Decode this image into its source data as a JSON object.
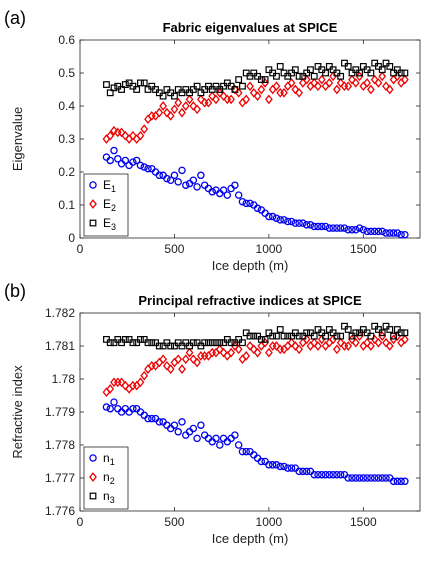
{
  "chart_data": [
    {
      "type": "scatter",
      "panel_label": "(a)",
      "title": "Fabric eigenvalues at SPICE",
      "xlabel": "Ice depth (m)",
      "ylabel": "Eigenvalue",
      "xlim": [
        0,
        1800
      ],
      "ylim": [
        0,
        0.6
      ],
      "xticks": [
        "0",
        "500",
        "1000",
        "1500"
      ],
      "yticks": [
        "0",
        "0.1",
        "0.2",
        "0.3",
        "0.4",
        "0.5",
        "0.6"
      ],
      "legend_position": "lower-left",
      "series": [
        {
          "name": "E",
          "sub": "1",
          "marker": "circle",
          "color": "#0000ee",
          "x": [
            140,
            160,
            180,
            200,
            220,
            240,
            260,
            280,
            300,
            320,
            340,
            360,
            380,
            400,
            420,
            440,
            460,
            480,
            500,
            520,
            540,
            560,
            580,
            600,
            620,
            640,
            660,
            680,
            700,
            720,
            740,
            760,
            780,
            800,
            820,
            840,
            860,
            880,
            900,
            920,
            940,
            960,
            980,
            1000,
            1020,
            1040,
            1060,
            1080,
            1100,
            1120,
            1140,
            1160,
            1180,
            1200,
            1220,
            1240,
            1260,
            1280,
            1300,
            1320,
            1340,
            1360,
            1380,
            1400,
            1420,
            1440,
            1460,
            1480,
            1500,
            1520,
            1540,
            1560,
            1580,
            1600,
            1620,
            1640,
            1660,
            1680,
            1700,
            1720
          ],
          "y": [
            0.245,
            0.235,
            0.265,
            0.24,
            0.225,
            0.235,
            0.22,
            0.23,
            0.235,
            0.22,
            0.215,
            0.21,
            0.21,
            0.2,
            0.19,
            0.19,
            0.18,
            0.175,
            0.19,
            0.17,
            0.205,
            0.16,
            0.165,
            0.175,
            0.155,
            0.19,
            0.16,
            0.15,
            0.14,
            0.145,
            0.135,
            0.145,
            0.13,
            0.15,
            0.16,
            0.13,
            0.11,
            0.105,
            0.105,
            0.1,
            0.09,
            0.085,
            0.075,
            0.065,
            0.065,
            0.06,
            0.055,
            0.055,
            0.05,
            0.05,
            0.045,
            0.045,
            0.045,
            0.04,
            0.04,
            0.035,
            0.035,
            0.035,
            0.035,
            0.03,
            0.03,
            0.03,
            0.03,
            0.03,
            0.025,
            0.025,
            0.025,
            0.03,
            0.025,
            0.02,
            0.02,
            0.02,
            0.02,
            0.02,
            0.015,
            0.015,
            0.015,
            0.015,
            0.01,
            0.01
          ]
        },
        {
          "name": "E",
          "sub": "2",
          "marker": "diamond",
          "color": "#ee0000",
          "x": [
            140,
            160,
            180,
            200,
            220,
            240,
            260,
            280,
            300,
            320,
            340,
            360,
            380,
            400,
            420,
            440,
            460,
            480,
            500,
            520,
            540,
            560,
            580,
            600,
            620,
            640,
            660,
            680,
            700,
            720,
            740,
            760,
            780,
            800,
            820,
            840,
            860,
            880,
            900,
            920,
            940,
            960,
            980,
            1000,
            1020,
            1040,
            1060,
            1080,
            1100,
            1120,
            1140,
            1160,
            1180,
            1200,
            1220,
            1240,
            1260,
            1280,
            1300,
            1320,
            1340,
            1360,
            1380,
            1400,
            1420,
            1440,
            1460,
            1480,
            1500,
            1520,
            1540,
            1560,
            1580,
            1600,
            1620,
            1640,
            1660,
            1680,
            1700,
            1720
          ],
          "y": [
            0.3,
            0.31,
            0.325,
            0.32,
            0.32,
            0.31,
            0.3,
            0.31,
            0.3,
            0.31,
            0.33,
            0.36,
            0.37,
            0.37,
            0.38,
            0.4,
            0.38,
            0.37,
            0.39,
            0.41,
            0.38,
            0.4,
            0.42,
            0.4,
            0.39,
            0.42,
            0.41,
            0.41,
            0.43,
            0.42,
            0.44,
            0.43,
            0.42,
            0.42,
            0.45,
            0.44,
            0.41,
            0.42,
            0.46,
            0.44,
            0.43,
            0.45,
            0.47,
            0.42,
            0.45,
            0.46,
            0.44,
            0.44,
            0.46,
            0.47,
            0.45,
            0.44,
            0.47,
            0.48,
            0.46,
            0.47,
            0.46,
            0.48,
            0.46,
            0.47,
            0.49,
            0.45,
            0.47,
            0.46,
            0.46,
            0.48,
            0.47,
            0.49,
            0.46,
            0.47,
            0.45,
            0.48,
            0.47,
            0.49,
            0.46,
            0.45,
            0.48,
            0.49,
            0.47,
            0.48
          ]
        },
        {
          "name": "E",
          "sub": "3",
          "marker": "square",
          "color": "#000000",
          "x": [
            140,
            160,
            180,
            200,
            220,
            240,
            260,
            280,
            300,
            320,
            340,
            360,
            380,
            400,
            420,
            440,
            460,
            480,
            500,
            520,
            540,
            560,
            580,
            600,
            620,
            640,
            660,
            680,
            700,
            720,
            740,
            760,
            780,
            800,
            820,
            840,
            860,
            880,
            900,
            920,
            940,
            960,
            980,
            1000,
            1020,
            1040,
            1060,
            1080,
            1100,
            1120,
            1140,
            1160,
            1180,
            1200,
            1220,
            1240,
            1260,
            1280,
            1300,
            1320,
            1340,
            1360,
            1380,
            1400,
            1420,
            1440,
            1460,
            1480,
            1500,
            1520,
            1540,
            1560,
            1580,
            1600,
            1620,
            1640,
            1660,
            1680,
            1700,
            1720
          ],
          "y": [
            0.465,
            0.44,
            0.455,
            0.46,
            0.45,
            0.465,
            0.47,
            0.46,
            0.45,
            0.47,
            0.47,
            0.45,
            0.46,
            0.45,
            0.44,
            0.43,
            0.45,
            0.44,
            0.43,
            0.45,
            0.44,
            0.45,
            0.44,
            0.45,
            0.46,
            0.44,
            0.45,
            0.46,
            0.45,
            0.46,
            0.45,
            0.46,
            0.47,
            0.46,
            0.45,
            0.48,
            0.46,
            0.5,
            0.49,
            0.5,
            0.49,
            0.48,
            0.48,
            0.51,
            0.5,
            0.49,
            0.52,
            0.5,
            0.49,
            0.5,
            0.51,
            0.49,
            0.49,
            0.5,
            0.51,
            0.49,
            0.52,
            0.51,
            0.5,
            0.52,
            0.51,
            0.5,
            0.49,
            0.53,
            0.52,
            0.5,
            0.51,
            0.5,
            0.52,
            0.51,
            0.5,
            0.53,
            0.52,
            0.51,
            0.53,
            0.52,
            0.5,
            0.51,
            0.5,
            0.5
          ]
        }
      ]
    },
    {
      "type": "scatter",
      "panel_label": "(b)",
      "title": "Principal refractive indices at SPICE",
      "xlabel": "Ice depth (m)",
      "ylabel": "Refractive index",
      "xlim": [
        0,
        1800
      ],
      "ylim": [
        1.776,
        1.782
      ],
      "xticks": [
        "0",
        "500",
        "1000",
        "1500"
      ],
      "yticks": [
        "1.776",
        "1.777",
        "1.778",
        "1.779",
        "1.78",
        "1.781",
        "1.782"
      ],
      "legend_position": "lower-left",
      "series": [
        {
          "name": "n",
          "sub": "1",
          "marker": "circle",
          "color": "#0000ee",
          "x": [
            140,
            160,
            180,
            200,
            220,
            240,
            260,
            280,
            300,
            320,
            340,
            360,
            380,
            400,
            420,
            440,
            460,
            480,
            500,
            520,
            540,
            560,
            580,
            600,
            620,
            640,
            660,
            680,
            700,
            720,
            740,
            760,
            780,
            800,
            820,
            840,
            860,
            880,
            900,
            920,
            940,
            960,
            980,
            1000,
            1020,
            1040,
            1060,
            1080,
            1100,
            1120,
            1140,
            1160,
            1180,
            1200,
            1220,
            1240,
            1260,
            1280,
            1300,
            1320,
            1340,
            1360,
            1380,
            1400,
            1420,
            1440,
            1460,
            1480,
            1500,
            1520,
            1540,
            1560,
            1580,
            1600,
            1620,
            1640,
            1660,
            1680,
            1700,
            1720
          ],
          "y": [
            1.77915,
            1.7791,
            1.7793,
            1.7791,
            1.779,
            1.7791,
            1.779,
            1.7791,
            1.7791,
            1.779,
            1.7789,
            1.7788,
            1.7788,
            1.7788,
            1.7787,
            1.7787,
            1.7786,
            1.7785,
            1.7786,
            1.7784,
            1.7787,
            1.7783,
            1.7784,
            1.7785,
            1.7782,
            1.7786,
            1.7783,
            1.7782,
            1.7781,
            1.7782,
            1.778,
            1.7782,
            1.7781,
            1.7782,
            1.7783,
            1.778,
            1.7778,
            1.7778,
            1.7778,
            1.7777,
            1.7776,
            1.7775,
            1.7775,
            1.7774,
            1.7774,
            1.7774,
            1.77735,
            1.77735,
            1.7773,
            1.7773,
            1.7773,
            1.7772,
            1.7772,
            1.7772,
            1.7772,
            1.7771,
            1.7771,
            1.7771,
            1.7771,
            1.7771,
            1.7771,
            1.7771,
            1.7771,
            1.7771,
            1.777,
            1.777,
            1.777,
            1.777,
            1.777,
            1.777,
            1.777,
            1.777,
            1.777,
            1.777,
            1.777,
            1.777,
            1.7769,
            1.7769,
            1.7769,
            1.7769
          ]
        },
        {
          "name": "n",
          "sub": "2",
          "marker": "diamond",
          "color": "#ee0000",
          "x": [
            140,
            160,
            180,
            200,
            220,
            240,
            260,
            280,
            300,
            320,
            340,
            360,
            380,
            400,
            420,
            440,
            460,
            480,
            500,
            520,
            540,
            560,
            580,
            600,
            620,
            640,
            660,
            680,
            700,
            720,
            740,
            760,
            780,
            800,
            820,
            840,
            860,
            880,
            900,
            920,
            940,
            960,
            980,
            1000,
            1020,
            1040,
            1060,
            1080,
            1100,
            1120,
            1140,
            1160,
            1180,
            1200,
            1220,
            1240,
            1260,
            1280,
            1300,
            1320,
            1340,
            1360,
            1380,
            1400,
            1420,
            1440,
            1460,
            1480,
            1500,
            1520,
            1540,
            1560,
            1580,
            1600,
            1620,
            1640,
            1660,
            1680,
            1700,
            1720
          ],
          "y": [
            1.7796,
            1.7797,
            1.7799,
            1.7799,
            1.7799,
            1.7798,
            1.7797,
            1.7798,
            1.7798,
            1.7799,
            1.7801,
            1.7803,
            1.7804,
            1.7804,
            1.7805,
            1.7806,
            1.7804,
            1.7803,
            1.7805,
            1.7806,
            1.7803,
            1.7806,
            1.7808,
            1.7806,
            1.7805,
            1.7807,
            1.7807,
            1.7807,
            1.7808,
            1.7808,
            1.7809,
            1.7808,
            1.7807,
            1.7808,
            1.781,
            1.7809,
            1.7806,
            1.7807,
            1.781,
            1.7809,
            1.7808,
            1.781,
            1.7811,
            1.7808,
            1.781,
            1.781,
            1.7809,
            1.7809,
            1.781,
            1.7811,
            1.781,
            1.7809,
            1.7811,
            1.7812,
            1.781,
            1.7811,
            1.781,
            1.7812,
            1.781,
            1.7811,
            1.7812,
            1.7809,
            1.7811,
            1.781,
            1.781,
            1.7812,
            1.7811,
            1.7813,
            1.781,
            1.7811,
            1.781,
            1.7812,
            1.7811,
            1.7813,
            1.7811,
            1.781,
            1.7812,
            1.7813,
            1.7811,
            1.7812
          ]
        },
        {
          "name": "n",
          "sub": "3",
          "marker": "square",
          "color": "#000000",
          "x": [
            140,
            160,
            180,
            200,
            220,
            240,
            260,
            280,
            300,
            320,
            340,
            360,
            380,
            400,
            420,
            440,
            460,
            480,
            500,
            520,
            540,
            560,
            580,
            600,
            620,
            640,
            660,
            680,
            700,
            720,
            740,
            760,
            780,
            800,
            820,
            840,
            860,
            880,
            900,
            920,
            940,
            960,
            980,
            1000,
            1020,
            1040,
            1060,
            1080,
            1100,
            1120,
            1140,
            1160,
            1180,
            1200,
            1220,
            1240,
            1260,
            1280,
            1300,
            1320,
            1340,
            1360,
            1380,
            1400,
            1420,
            1440,
            1460,
            1480,
            1500,
            1520,
            1540,
            1560,
            1580,
            1600,
            1620,
            1640,
            1660,
            1680,
            1700,
            1720
          ],
          "y": [
            1.7812,
            1.7811,
            1.7811,
            1.7812,
            1.7811,
            1.7812,
            1.7812,
            1.7811,
            1.7811,
            1.7812,
            1.7812,
            1.7811,
            1.7811,
            1.7811,
            1.781,
            1.781,
            1.7811,
            1.781,
            1.781,
            1.7811,
            1.781,
            1.7811,
            1.781,
            1.7811,
            1.7811,
            1.781,
            1.7811,
            1.7811,
            1.7811,
            1.7811,
            1.7811,
            1.7811,
            1.7812,
            1.7811,
            1.7811,
            1.7812,
            1.7811,
            1.7814,
            1.7813,
            1.7813,
            1.7813,
            1.7812,
            1.7812,
            1.7814,
            1.7813,
            1.7813,
            1.7815,
            1.7813,
            1.7813,
            1.7813,
            1.7814,
            1.7813,
            1.7813,
            1.7814,
            1.7814,
            1.7813,
            1.7815,
            1.7814,
            1.7813,
            1.7815,
            1.7814,
            1.7813,
            1.7813,
            1.7816,
            1.7815,
            1.7813,
            1.7814,
            1.7814,
            1.7815,
            1.7814,
            1.7813,
            1.7816,
            1.7815,
            1.7814,
            1.7816,
            1.7815,
            1.7813,
            1.7815,
            1.7814,
            1.7814
          ]
        }
      ]
    }
  ]
}
